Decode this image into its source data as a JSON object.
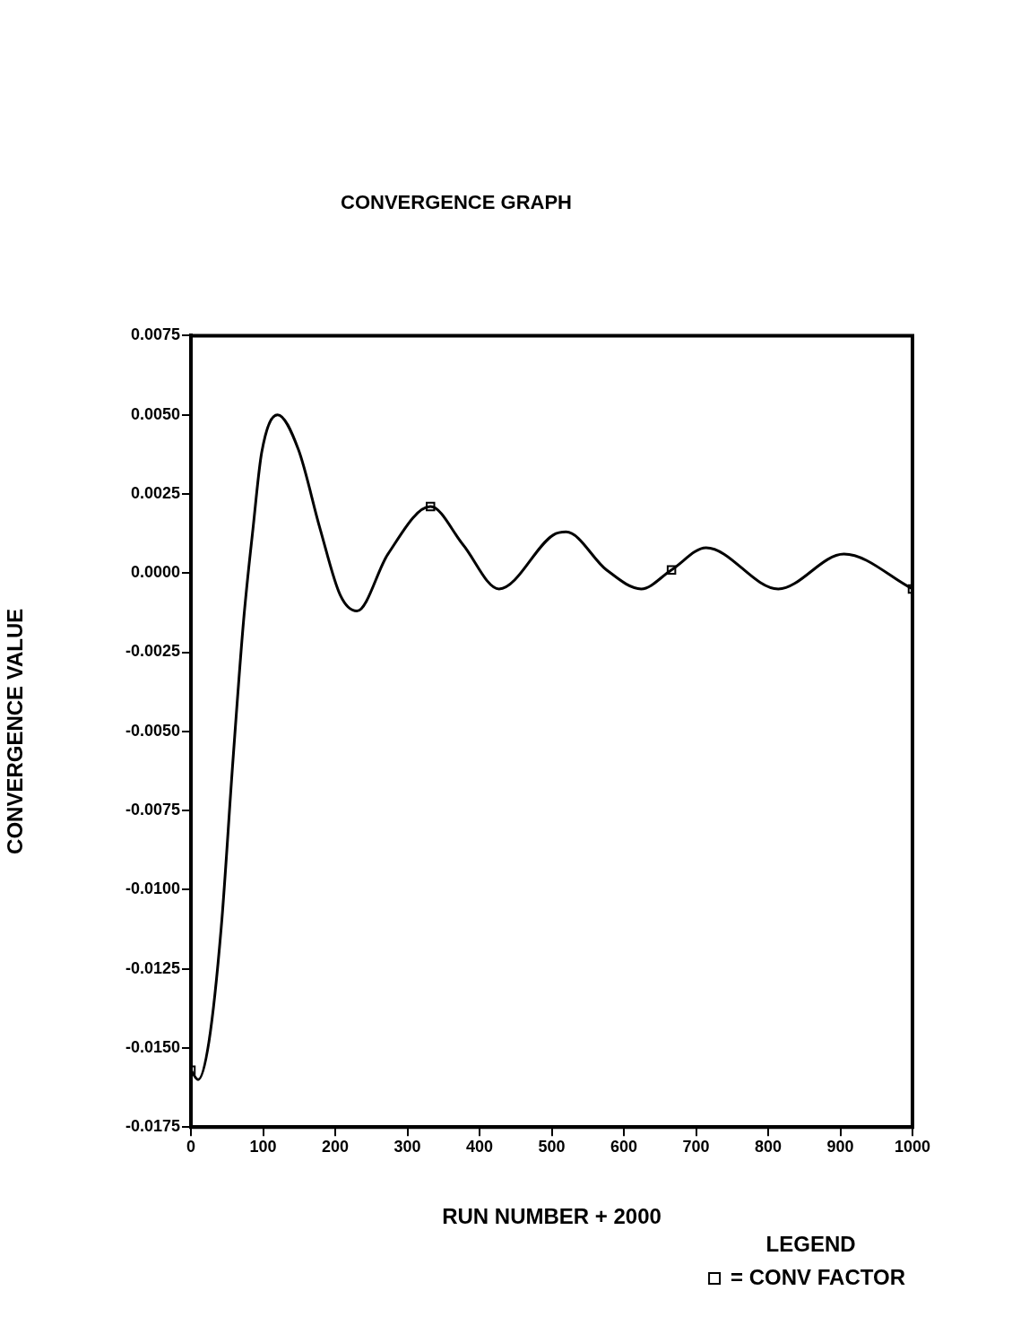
{
  "chart_data": {
    "type": "line",
    "title": "CONVERGENCE GRAPH",
    "xlabel": "RUN NUMBER + 2000",
    "ylabel": "CONVERGENCE VALUE",
    "legend_title": "LEGEND",
    "legend": "bottom right",
    "grid": false,
    "xlim": [
      0,
      1000
    ],
    "xticks": [
      0,
      100,
      200,
      300,
      400,
      500,
      600,
      700,
      800,
      900,
      1000
    ],
    "ylim": [
      -0.0175,
      0.0075
    ],
    "yticks": [
      {
        "value": -0.0175,
        "label": "-0.0175"
      },
      {
        "value": -0.015,
        "label": "-0.0150"
      },
      {
        "value": -0.0125,
        "label": "-0.0125"
      },
      {
        "value": -0.01,
        "label": "-0.0100"
      },
      {
        "value": -0.0075,
        "label": "-0.0075"
      },
      {
        "value": -0.005,
        "label": "-0.0050"
      },
      {
        "value": -0.0025,
        "label": "-0.0025"
      },
      {
        "value": 0,
        "label": "0.0000"
      },
      {
        "value": 0.0025,
        "label": "0.0025"
      },
      {
        "value": 0.005,
        "label": "0.0050"
      },
      {
        "value": 0.0075,
        "label": "0.0075"
      }
    ],
    "series": [
      {
        "type": "line",
        "color": "#000000",
        "marker": "none",
        "x": [
          0,
          10,
          25,
          42,
          58,
          73,
          86,
          98,
          120,
          149,
          179,
          207,
          230,
          273,
          332,
          377,
          427,
          502,
          520,
          576,
          624,
          666,
          714,
          814,
          905,
          1000
        ],
        "values": [
          -0.0157,
          -0.016,
          -0.0148,
          -0.0112,
          -0.006,
          -0.0015,
          0.0014,
          0.0038,
          0.005,
          0.0039,
          0.0014,
          -0.0007,
          -0.0012,
          0.0006,
          0.0021,
          0.0009,
          -0.0005,
          0.0012,
          0.0013,
          0.0001,
          -0.0005,
          0.0001,
          0.0008,
          -0.0005,
          0.0006,
          -0.0005
        ]
      },
      {
        "type": "scatter",
        "name": "= CONV FACTOR",
        "color": "#000000",
        "marker": "square",
        "x": [
          0,
          332,
          666,
          1000
        ],
        "values": [
          -0.0157,
          0.0021,
          0.0001,
          -0.0005
        ]
      }
    ]
  }
}
